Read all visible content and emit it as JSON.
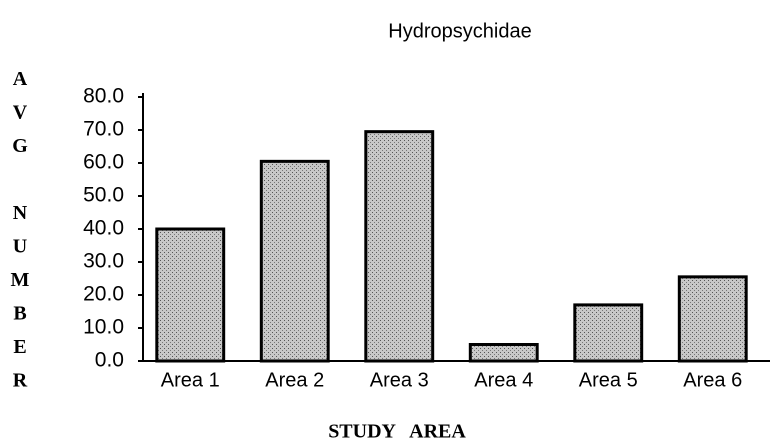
{
  "chart_data": {
    "type": "bar",
    "title": "Hydropsychidae",
    "x_label": "STUDY AREA",
    "y_label": "AVG NUMBER",
    "categories": [
      "Area 1",
      "Area 2",
      "Area 3",
      "Area 4",
      "Area 5",
      "Area 6"
    ],
    "values": [
      40,
      60.5,
      69.5,
      5,
      17,
      25.5
    ],
    "color": "#a8a8a8",
    "ylim": [
      0,
      80
    ],
    "yticks": [
      {
        "value": 0,
        "label": "0.0"
      },
      {
        "value": 10,
        "label": "10.0"
      },
      {
        "value": 20,
        "label": "20.0"
      },
      {
        "value": 30,
        "label": "30.0"
      },
      {
        "value": 40,
        "label": "40.0"
      },
      {
        "value": 50,
        "label": "50.0"
      },
      {
        "value": 60,
        "label": "60.0"
      },
      {
        "value": 70,
        "label": "70.0"
      },
      {
        "value": 80,
        "label": "80.0"
      }
    ],
    "grid": false
  }
}
